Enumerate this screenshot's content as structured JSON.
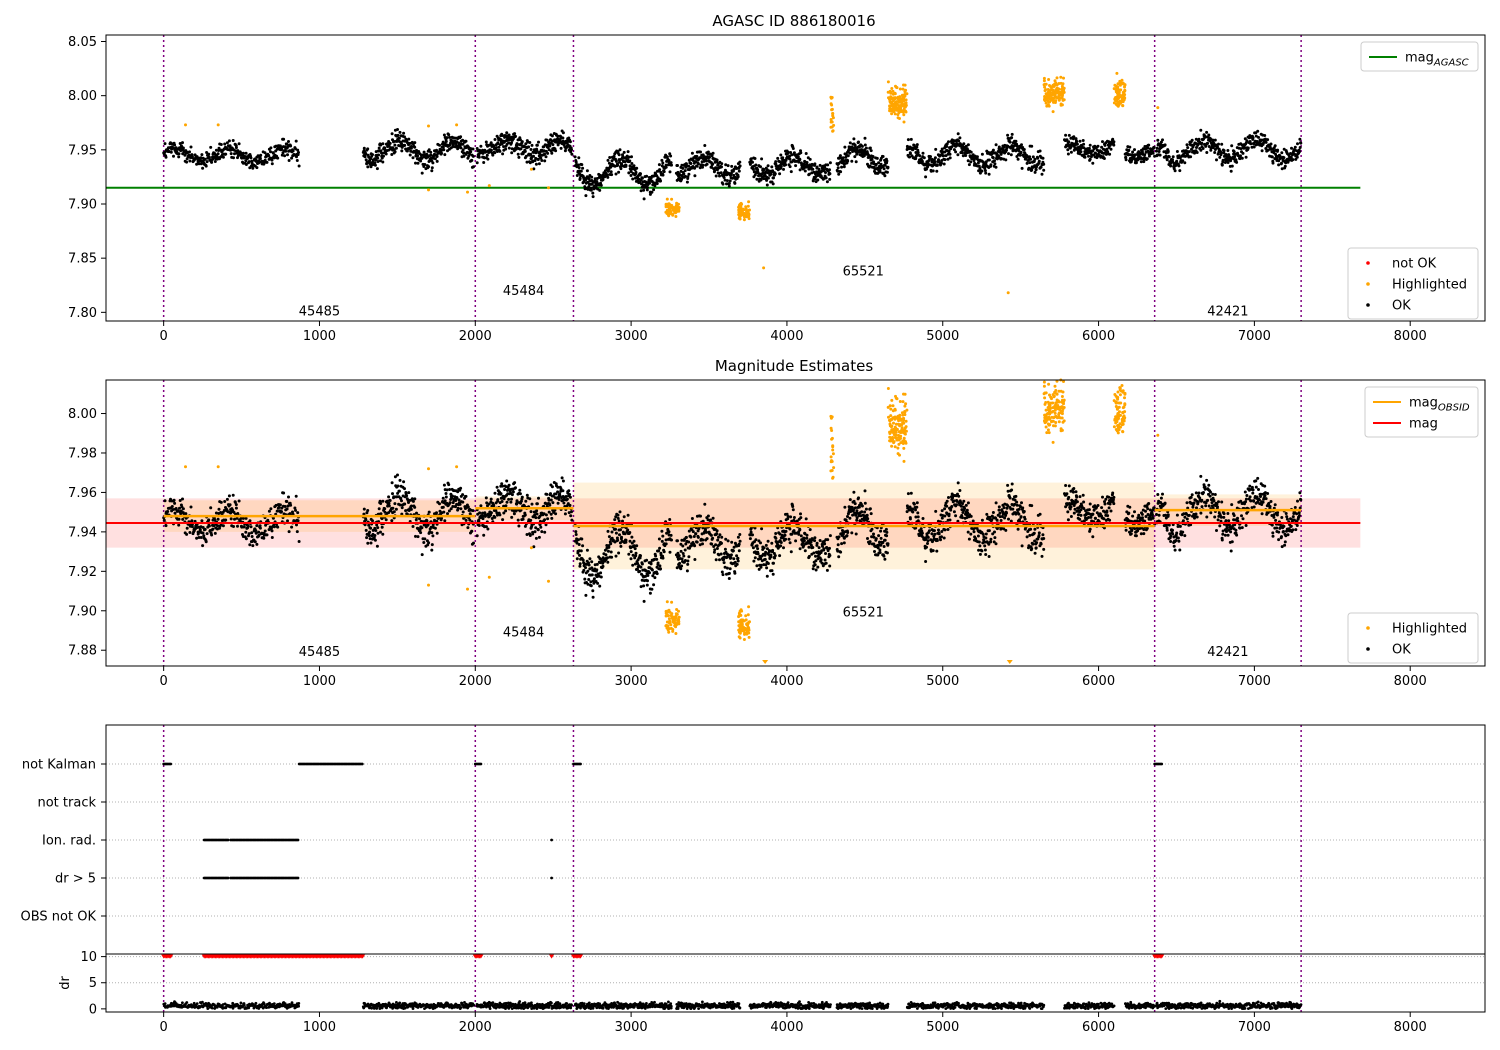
{
  "figure": {
    "panels": [
      {
        "title": "AGASC ID 886180016"
      },
      {
        "title": "Magnitude Estimates"
      },
      {
        "title": ""
      }
    ]
  },
  "colors": {
    "ok": "#000000",
    "highlighted": "#ffa500",
    "not_ok": "#ff0000",
    "agasc_line": "#008000",
    "mag_line": "#ff0000",
    "obsid_line": "#ffa500",
    "obs_boundary": "#800080",
    "grid": "#b0b0b0"
  },
  "chart_data": [
    {
      "type": "scatter",
      "title": "AGASC ID 886180016",
      "xlabel": "",
      "ylabel": "",
      "xlim": [
        -370,
        8480
      ],
      "ylim": [
        7.792,
        8.056
      ],
      "xticks": [
        0,
        1000,
        2000,
        3000,
        4000,
        5000,
        6000,
        7000,
        8000
      ],
      "yticks": [
        "7.80",
        "7.85",
        "7.90",
        "7.95",
        "8.00",
        "8.05"
      ],
      "grid": false,
      "legends": [
        {
          "placement": "top-right",
          "entries": [
            {
              "label": "mag",
              "sub": "AGASC",
              "kind": "line",
              "color": "#008000"
            }
          ]
        },
        {
          "placement": "bottom-right",
          "entries": [
            {
              "label": "not OK",
              "kind": "marker",
              "color": "#ff0000"
            },
            {
              "label": "Highlighted",
              "kind": "marker",
              "color": "#ffa500"
            },
            {
              "label": "OK",
              "kind": "marker",
              "color": "#000000"
            }
          ]
        }
      ],
      "hlines": [
        {
          "name": "mag_AGASC",
          "y": 7.915,
          "x": [
            -370,
            7680
          ]
        }
      ],
      "obs_boundaries": [
        0,
        2000,
        2630,
        6360,
        7300
      ],
      "obsid_labels": [
        {
          "text": "45485",
          "x": 1000,
          "y": 7.797
        },
        {
          "text": "45484",
          "x": 2310,
          "y": 7.816
        },
        {
          "text": "65521",
          "x": 4490,
          "y": 7.834
        },
        {
          "text": "42421",
          "x": 6830,
          "y": 7.797
        }
      ],
      "segments": [
        {
          "x": [
            0,
            870
          ],
          "level": 7.945,
          "amp": 0.006,
          "noise": 0.005,
          "n": 330
        },
        {
          "x": [
            1280,
            1990
          ],
          "level": 7.95,
          "amp": 0.008,
          "noise": 0.006,
          "n": 330
        },
        {
          "x": [
            2010,
            2620
          ],
          "level": 7.952,
          "amp": 0.006,
          "noise": 0.006,
          "n": 300
        },
        {
          "x": [
            2640,
            3260
          ],
          "level": 7.93,
          "amp": 0.012,
          "noise": 0.006,
          "n": 300
        },
        {
          "x": [
            3290,
            3700
          ],
          "level": 7.935,
          "amp": 0.008,
          "noise": 0.006,
          "n": 200
        },
        {
          "x": [
            3760,
            4280
          ],
          "level": 7.935,
          "amp": 0.008,
          "noise": 0.006,
          "n": 250
        },
        {
          "x": [
            4320,
            4650
          ],
          "level": 7.942,
          "amp": 0.008,
          "noise": 0.006,
          "n": 170
        },
        {
          "x": [
            4770,
            5650
          ],
          "level": 7.945,
          "amp": 0.008,
          "noise": 0.006,
          "n": 400
        },
        {
          "x": [
            5780,
            6100
          ],
          "level": 7.952,
          "amp": 0.005,
          "noise": 0.005,
          "n": 150
        },
        {
          "x": [
            6170,
            6360
          ],
          "level": 7.948,
          "amp": 0.004,
          "noise": 0.004,
          "n": 90
        },
        {
          "x": [
            6370,
            7300
          ],
          "level": 7.95,
          "amp": 0.009,
          "noise": 0.006,
          "n": 400
        }
      ],
      "highlight_clusters": [
        {
          "x": [
            4280,
            4300
          ],
          "level": 7.985,
          "spread": 0.01,
          "n": 20
        },
        {
          "x": [
            4650,
            4770
          ],
          "level": 7.995,
          "spread": 0.008,
          "n": 130
        },
        {
          "x": [
            5650,
            5780
          ],
          "level": 8.003,
          "spread": 0.007,
          "n": 130
        },
        {
          "x": [
            6100,
            6170
          ],
          "level": 8.001,
          "spread": 0.007,
          "n": 80
        },
        {
          "x": [
            3220,
            3310
          ],
          "level": 7.895,
          "spread": 0.004,
          "n": 70
        },
        {
          "x": [
            3690,
            3760
          ],
          "level": 7.893,
          "spread": 0.004,
          "n": 70
        }
      ],
      "highlight_points": [
        [
          140,
          7.973
        ],
        [
          350,
          7.973
        ],
        [
          1700,
          7.972
        ],
        [
          1880,
          7.973
        ],
        [
          1700,
          7.913
        ],
        [
          1950,
          7.911
        ],
        [
          2090,
          7.917
        ],
        [
          2360,
          7.932
        ],
        [
          2470,
          7.915
        ],
        [
          3850,
          7.841
        ],
        [
          5420,
          7.818
        ],
        [
          6380,
          7.989
        ]
      ]
    },
    {
      "type": "scatter",
      "title": "Magnitude Estimates",
      "xlabel": "",
      "ylabel": "",
      "xlim": [
        -370,
        8480
      ],
      "ylim": [
        7.872,
        8.017
      ],
      "xticks": [
        0,
        1000,
        2000,
        3000,
        4000,
        5000,
        6000,
        7000,
        8000
      ],
      "yticks": [
        "7.88",
        "7.90",
        "7.92",
        "7.94",
        "7.96",
        "7.98",
        "8.00"
      ],
      "grid": false,
      "legends": [
        {
          "placement": "top-right",
          "entries": [
            {
              "label": "mag",
              "sub": "OBSID",
              "kind": "line",
              "color": "#ffa500"
            },
            {
              "label": "mag",
              "kind": "line",
              "color": "#ff0000"
            }
          ]
        },
        {
          "placement": "bottom-right",
          "entries": [
            {
              "label": "Highlighted",
              "kind": "marker",
              "color": "#ffa500"
            },
            {
              "label": "OK",
              "kind": "marker",
              "color": "#000000"
            }
          ]
        }
      ],
      "mag": {
        "y": 7.9445,
        "band": [
          7.932,
          7.957
        ],
        "x": [
          -370,
          7680
        ]
      },
      "obsid_mags": [
        {
          "x": [
            0,
            2000
          ],
          "y": 7.948,
          "band": [
            7.94,
            7.956
          ]
        },
        {
          "x": [
            2000,
            2630
          ],
          "y": 7.952,
          "band": [
            7.946,
            7.958
          ]
        },
        {
          "x": [
            2630,
            6360
          ],
          "y": 7.943,
          "band": [
            7.921,
            7.965
          ]
        },
        {
          "x": [
            6360,
            7300
          ],
          "y": 7.951,
          "band": [
            7.943,
            7.959
          ]
        }
      ],
      "obs_boundaries": [
        0,
        2000,
        2630,
        6360,
        7300
      ],
      "obsid_labels": [
        {
          "text": "45485",
          "x": 1000,
          "y": 7.877
        },
        {
          "text": "45484",
          "x": 2310,
          "y": 7.887
        },
        {
          "text": "65521",
          "x": 4490,
          "y": 7.897
        },
        {
          "text": "42421",
          "x": 6830,
          "y": 7.877
        }
      ],
      "out_of_range_markers": [
        3860,
        5430
      ],
      "note": "same measurements as panel 1, drawn on this panel's y-scale"
    },
    {
      "type": "scatter",
      "title": "",
      "xlim": [
        -370,
        8480
      ],
      "xticks": [
        0,
        1000,
        2000,
        3000,
        4000,
        5000,
        6000,
        7000,
        8000
      ],
      "flag_rows": [
        "not Kalman",
        "not track",
        "Ion. rad.",
        "dr > 5",
        "OBS not OK"
      ],
      "flag_ranges": {
        "not Kalman": [
          [
            0,
            50
          ],
          [
            870,
            1280
          ],
          [
            2000,
            2040
          ],
          [
            2630,
            2680
          ],
          [
            6360,
            6410
          ]
        ],
        "not track": [],
        "Ion. rad.": [
          [
            260,
            420
          ],
          [
            430,
            870
          ],
          [
            2490,
            2495
          ]
        ],
        "dr > 5": [
          [
            260,
            420
          ],
          [
            430,
            870
          ],
          [
            2490,
            2495
          ]
        ],
        "OBS not OK": []
      },
      "dr": {
        "ylabel": "dr",
        "yticks": [
          0,
          5,
          10
        ],
        "ylim": [
          -0.6,
          10.5
        ],
        "clipped_at": 10,
        "clipped_ranges": [
          [
            0,
            50
          ],
          [
            260,
            1280
          ],
          [
            2000,
            2040
          ],
          [
            2490,
            2495
          ],
          [
            2630,
            2680
          ],
          [
            6360,
            6410
          ]
        ],
        "typical": 0.6
      }
    }
  ]
}
